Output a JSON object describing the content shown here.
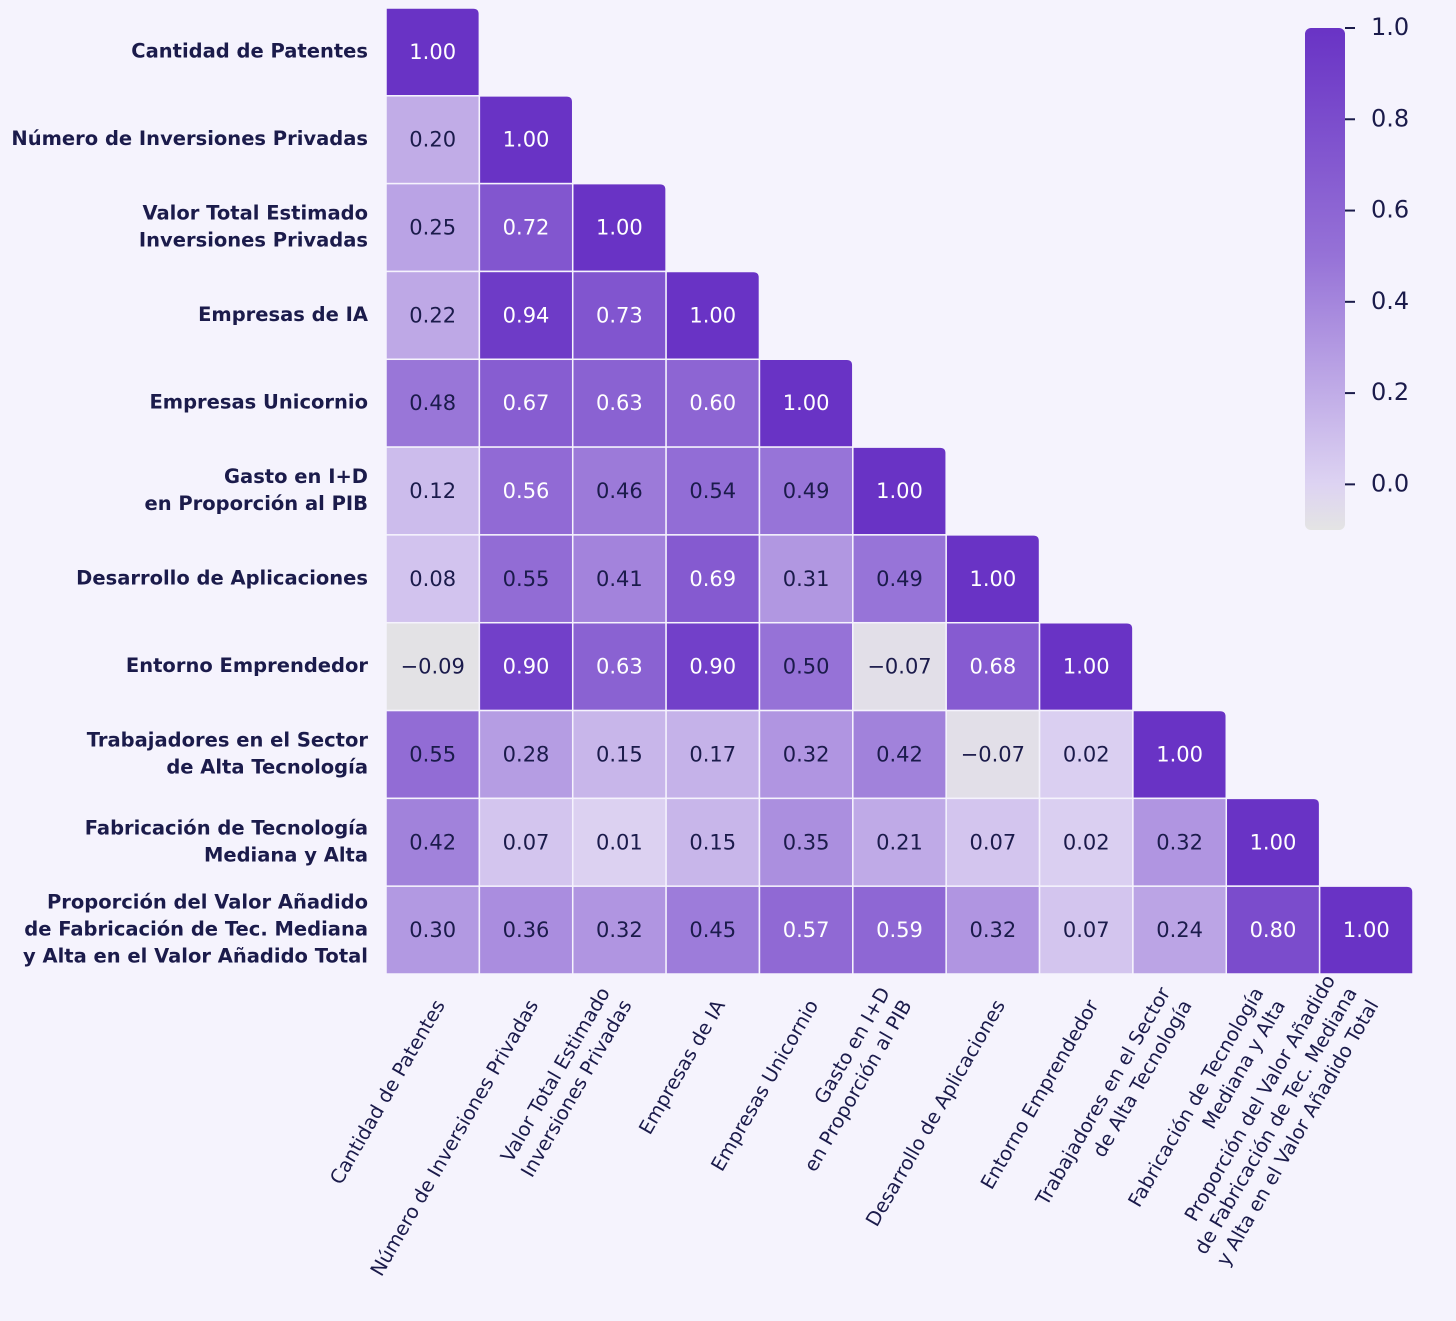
{
  "chart_data": {
    "type": "heatmap",
    "categories": [
      [
        "Cantidad de Patentes"
      ],
      [
        "Número de Inversiones Privadas"
      ],
      [
        "Valor Total Estimado",
        "Inversiones Privadas"
      ],
      [
        "Empresas de IA"
      ],
      [
        "Empresas Unicornio"
      ],
      [
        "Gasto en I+D",
        "en Proporción al PIB"
      ],
      [
        "Desarrollo de Aplicaciones"
      ],
      [
        "Entorno Emprendedor"
      ],
      [
        "Trabajadores en el Sector",
        "de Alta Tecnología"
      ],
      [
        "Fabricación de Tecnología",
        "Mediana y Alta"
      ],
      [
        "Proporción del Valor Añadido",
        "de Fabricación de Tec. Mediana",
        "y Alta en el Valor Añadido Total"
      ]
    ],
    "values": [
      [
        1.0
      ],
      [
        0.2,
        1.0
      ],
      [
        0.25,
        0.72,
        1.0
      ],
      [
        0.22,
        0.94,
        0.73,
        1.0
      ],
      [
        0.48,
        0.67,
        0.63,
        0.6,
        1.0
      ],
      [
        0.12,
        0.56,
        0.46,
        0.54,
        0.49,
        1.0
      ],
      [
        0.08,
        0.55,
        0.41,
        0.69,
        0.31,
        0.49,
        1.0
      ],
      [
        -0.09,
        0.9,
        0.63,
        0.9,
        0.5,
        -0.07,
        0.68,
        1.0
      ],
      [
        0.55,
        0.28,
        0.15,
        0.17,
        0.32,
        0.42,
        -0.07,
        0.02,
        1.0
      ],
      [
        0.42,
        0.07,
        0.01,
        0.15,
        0.35,
        0.21,
        0.07,
        0.02,
        0.32,
        1.0
      ],
      [
        0.3,
        0.36,
        0.32,
        0.45,
        0.57,
        0.59,
        0.32,
        0.07,
        0.24,
        0.8,
        1.0
      ]
    ],
    "value_labels": [
      [
        "1.00"
      ],
      [
        "0.20",
        "1.00"
      ],
      [
        "0.25",
        "0.72",
        "1.00"
      ],
      [
        "0.22",
        "0.94",
        "0.73",
        "1.00"
      ],
      [
        "0.48",
        "0.67",
        "0.63",
        "0.60",
        "1.00"
      ],
      [
        "0.12",
        "0.56",
        "0.46",
        "0.54",
        "0.49",
        "1.00"
      ],
      [
        "0.08",
        "0.55",
        "0.41",
        "0.69",
        "0.31",
        "0.49",
        "1.00"
      ],
      [
        "−0.09",
        "0.90",
        "0.63",
        "0.90",
        "0.50",
        "−0.07",
        "0.68",
        "1.00"
      ],
      [
        "0.55",
        "0.28",
        "0.15",
        "0.17",
        "0.32",
        "0.42",
        "−0.07",
        "0.02",
        "1.00"
      ],
      [
        "0.42",
        "0.07",
        "0.01",
        "0.15",
        "0.35",
        "0.21",
        "0.07",
        "0.02",
        "0.32",
        "1.00"
      ],
      [
        "0.30",
        "0.36",
        "0.32",
        "0.45",
        "0.57",
        "0.59",
        "0.32",
        "0.07",
        "0.24",
        "0.80",
        "1.00"
      ]
    ],
    "colorscale": [
      [
        -0.1,
        "#e4e4e4"
      ],
      [
        0,
        "#ddd3f2"
      ],
      [
        0.5,
        "#9672d7"
      ],
      [
        1,
        "#6933c5"
      ]
    ],
    "clim": [
      -0.1,
      1.0
    ],
    "cticks": [
      {
        "value": 0,
        "label": "0.0"
      },
      {
        "value": 0.2,
        "label": "0.2"
      },
      {
        "value": 0.4,
        "label": "0.4"
      },
      {
        "value": 0.6,
        "label": "0.6"
      },
      {
        "value": 0.8,
        "label": "0.8"
      },
      {
        "value": 1.0,
        "label": "1.0"
      }
    ]
  }
}
